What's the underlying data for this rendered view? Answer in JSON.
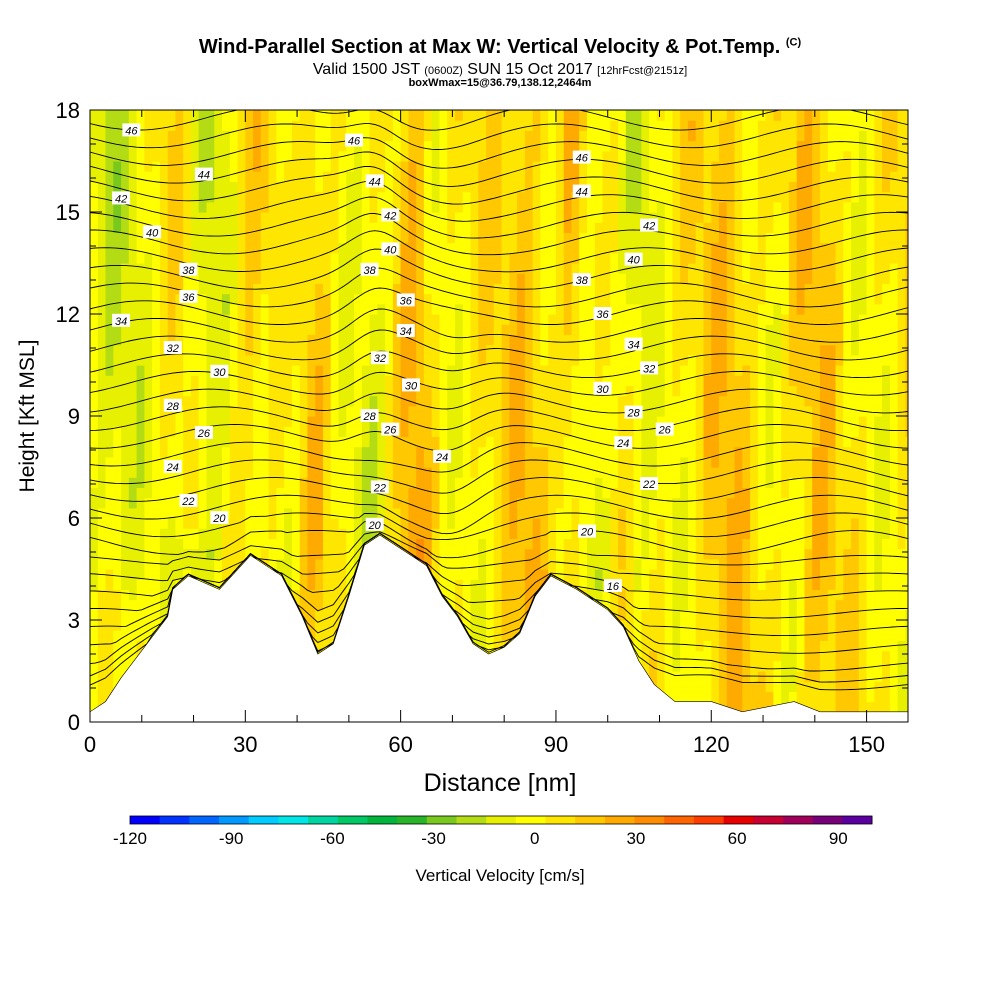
{
  "header": {
    "title": "Wind-Parallel Section at Max W: Vertical Velocity & Pot.Temp.",
    "title_units": "(C)",
    "valid_prefix": "Valid 1500 JST",
    "valid_utc": "(0600Z)",
    "valid_date": "SUN 15 Oct 2017",
    "forecast": "[12hrFcst@2151z]",
    "boxwmax": "boxWmax=15@36.79,138.12,2464m"
  },
  "chart_data": {
    "type": "heatmap",
    "xlabel": "Distance [nm]",
    "ylabel": "Height [Kft MSL]",
    "xlim": [
      0,
      158
    ],
    "ylim": [
      0,
      18
    ],
    "x_ticks": [
      "0",
      "30",
      "60",
      "90",
      "120",
      "150"
    ],
    "x_tick_values": [
      0,
      30,
      60,
      90,
      120,
      150
    ],
    "y_ticks": [
      "0",
      "3",
      "6",
      "9",
      "12",
      "15",
      "18"
    ],
    "y_tick_values": [
      0,
      3,
      6,
      9,
      12,
      15,
      18
    ],
    "colorbar": {
      "label": "Vertical Velocity [cm/s]",
      "tick_labels": [
        "-120",
        "-90",
        "-60",
        "-30",
        "0",
        "30",
        "60",
        "90"
      ],
      "tick_values": [
        -120,
        -90,
        -60,
        -30,
        0,
        30,
        60,
        90
      ],
      "min": -120,
      "max": 100,
      "colors": [
        "#0000ff",
        "#0033ff",
        "#0066ff",
        "#0099ff",
        "#00ccff",
        "#00e6e6",
        "#00d4a0",
        "#00c864",
        "#00b43c",
        "#28b428",
        "#78c81e",
        "#b4dc14",
        "#e6f000",
        "#ffff00",
        "#ffe600",
        "#ffc800",
        "#ffaa00",
        "#ff8c00",
        "#ff6400",
        "#ff3c00",
        "#e60000",
        "#c80032",
        "#a0005a",
        "#780078",
        "#5a00a0"
      ]
    },
    "contour_labels": [
      {
        "text": "46",
        "x": 8,
        "y": 17.4
      },
      {
        "text": "44",
        "x": 22,
        "y": 16.1
      },
      {
        "text": "42",
        "x": 6,
        "y": 15.4
      },
      {
        "text": "40",
        "x": 12,
        "y": 14.4
      },
      {
        "text": "38",
        "x": 19,
        "y": 13.3
      },
      {
        "text": "36",
        "x": 19,
        "y": 12.5
      },
      {
        "text": "34",
        "x": 6,
        "y": 11.8
      },
      {
        "text": "32",
        "x": 16,
        "y": 11.0
      },
      {
        "text": "30",
        "x": 25,
        "y": 10.3
      },
      {
        "text": "28",
        "x": 16,
        "y": 9.3
      },
      {
        "text": "26",
        "x": 22,
        "y": 8.5
      },
      {
        "text": "24",
        "x": 16,
        "y": 7.5
      },
      {
        "text": "22",
        "x": 19,
        "y": 6.5
      },
      {
        "text": "20",
        "x": 25,
        "y": 6.0
      },
      {
        "text": "46",
        "x": 51,
        "y": 17.1
      },
      {
        "text": "44",
        "x": 55,
        "y": 15.9
      },
      {
        "text": "42",
        "x": 58,
        "y": 14.9
      },
      {
        "text": "40",
        "x": 58,
        "y": 13.9
      },
      {
        "text": "38",
        "x": 54,
        "y": 13.3
      },
      {
        "text": "36",
        "x": 61,
        "y": 12.4
      },
      {
        "text": "34",
        "x": 61,
        "y": 11.5
      },
      {
        "text": "32",
        "x": 56,
        "y": 10.7
      },
      {
        "text": "30",
        "x": 62,
        "y": 9.9
      },
      {
        "text": "28",
        "x": 54,
        "y": 9.0
      },
      {
        "text": "26",
        "x": 58,
        "y": 8.6
      },
      {
        "text": "24",
        "x": 68,
        "y": 7.8
      },
      {
        "text": "22",
        "x": 56,
        "y": 6.9
      },
      {
        "text": "20",
        "x": 55,
        "y": 5.8
      },
      {
        "text": "46",
        "x": 95,
        "y": 16.6
      },
      {
        "text": "44",
        "x": 95,
        "y": 15.6
      },
      {
        "text": "42",
        "x": 108,
        "y": 14.6
      },
      {
        "text": "40",
        "x": 105,
        "y": 13.6
      },
      {
        "text": "38",
        "x": 95,
        "y": 13.0
      },
      {
        "text": "36",
        "x": 99,
        "y": 12.0
      },
      {
        "text": "34",
        "x": 105,
        "y": 11.1
      },
      {
        "text": "32",
        "x": 108,
        "y": 10.4
      },
      {
        "text": "30",
        "x": 99,
        "y": 9.8
      },
      {
        "text": "28",
        "x": 105,
        "y": 9.1
      },
      {
        "text": "26",
        "x": 111,
        "y": 8.6
      },
      {
        "text": "24",
        "x": 103,
        "y": 8.2
      },
      {
        "text": "22",
        "x": 108,
        "y": 7.0
      },
      {
        "text": "20",
        "x": 96,
        "y": 5.6
      },
      {
        "text": "16",
        "x": 101,
        "y": 4.0
      }
    ],
    "terrain": [
      [
        0,
        0.3
      ],
      [
        3,
        0.6
      ],
      [
        6,
        1.3
      ],
      [
        9,
        1.9
      ],
      [
        12,
        2.5
      ],
      [
        15,
        3.1
      ],
      [
        16,
        3.9
      ],
      [
        19,
        4.3
      ],
      [
        25,
        3.9
      ],
      [
        31,
        4.9
      ],
      [
        37,
        4.3
      ],
      [
        41,
        3.1
      ],
      [
        44,
        2.0
      ],
      [
        47,
        2.3
      ],
      [
        50,
        3.7
      ],
      [
        53,
        5.2
      ],
      [
        56,
        5.5
      ],
      [
        62,
        4.9
      ],
      [
        65,
        4.6
      ],
      [
        68,
        3.7
      ],
      [
        71,
        3.1
      ],
      [
        74,
        2.3
      ],
      [
        77,
        2.0
      ],
      [
        80,
        2.2
      ],
      [
        83,
        2.6
      ],
      [
        86,
        3.7
      ],
      [
        89,
        4.3
      ],
      [
        94,
        3.9
      ],
      [
        97,
        3.6
      ],
      [
        100,
        3.3
      ],
      [
        103,
        2.8
      ],
      [
        106,
        1.8
      ],
      [
        109,
        1.1
      ],
      [
        113,
        0.6
      ],
      [
        120,
        0.6
      ],
      [
        126,
        0.3
      ],
      [
        136,
        0.6
      ],
      [
        141,
        0.3
      ],
      [
        158,
        0.3
      ]
    ]
  }
}
